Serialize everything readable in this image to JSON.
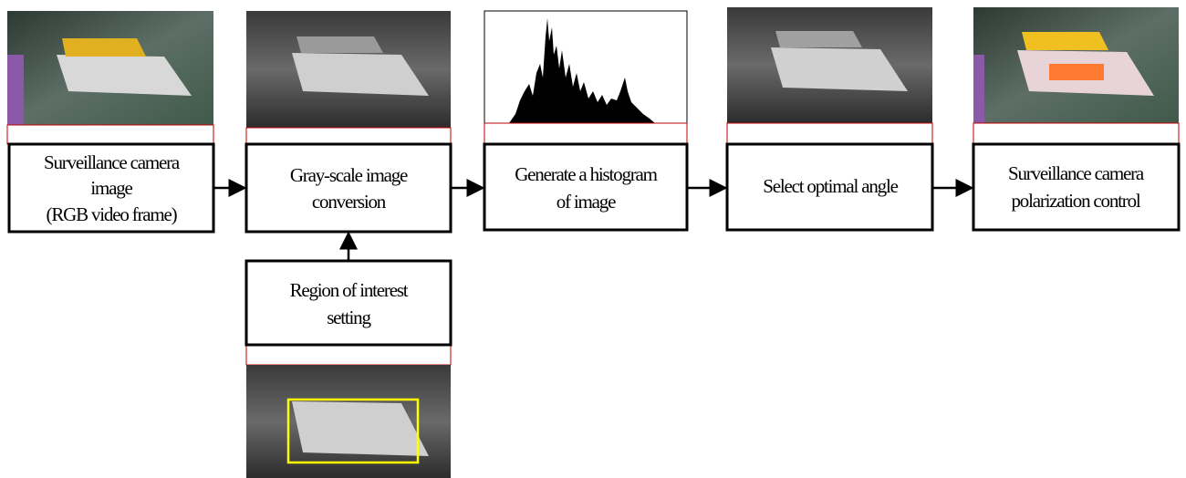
{
  "nodes": [
    {
      "lines": [
        "Surveillance camera",
        "image",
        "(RGB video frame)"
      ]
    },
    {
      "lines": [
        "Gray-scale image",
        "conversion"
      ]
    },
    {
      "lines": [
        "Generate a histogram",
        "of image"
      ]
    },
    {
      "lines": [
        "Select optimal angle"
      ]
    },
    {
      "lines": [
        "Surveillance camera",
        "polarization control"
      ]
    },
    {
      "lines": [
        "Region of interest",
        "setting"
      ]
    }
  ]
}
